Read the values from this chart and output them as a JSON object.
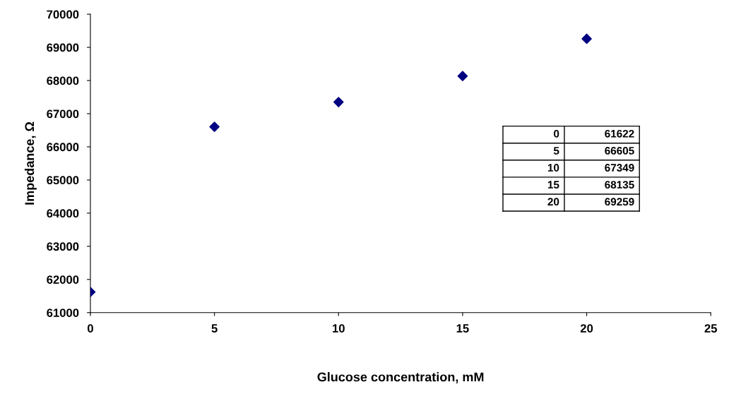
{
  "chart_data": {
    "type": "scatter",
    "xlabel": "Glucose concentration, mM",
    "ylabel": "Impedance, Ω",
    "x": [
      0,
      5,
      10,
      15,
      20
    ],
    "series": [
      {
        "color": "#000080",
        "values": [
          61622,
          66605,
          67349,
          68135,
          69259
        ]
      }
    ],
    "xlim": [
      0,
      25
    ],
    "xticks": [
      0,
      5,
      10,
      15,
      20,
      25
    ],
    "ylim": [
      61000,
      70000
    ],
    "yticks": [
      61000,
      62000,
      63000,
      64000,
      65000,
      66000,
      67000,
      68000,
      69000,
      70000
    ],
    "marker": "diamond",
    "grid": false,
    "legend": false,
    "annotations": [
      "0",
      "61622",
      "5",
      "66605",
      "10",
      "67349",
      "15",
      "68135",
      "20",
      "69259"
    ]
  }
}
